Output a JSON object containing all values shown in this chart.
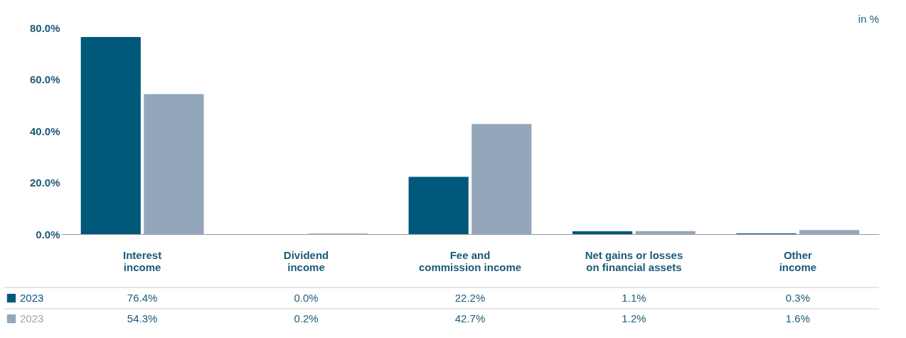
{
  "chart_data": {
    "type": "bar",
    "categories": [
      "Interest\nincome",
      "Dividend\nincome",
      "Fee and\ncommission income",
      "Net gains or losses\non financial assets",
      "Other\nincome"
    ],
    "series": [
      {
        "name": "2023",
        "color": "#00587a",
        "values": [
          76.4,
          0.0,
          22.2,
          1.1,
          0.3
        ],
        "value_labels": [
          "76.4%",
          "0.0%",
          "22.2%",
          "1.1%",
          "0.3%"
        ]
      },
      {
        "name": "2023",
        "color": "#94a6ba",
        "values": [
          54.3,
          0.2,
          42.7,
          1.2,
          1.6
        ],
        "value_labels": [
          "54.3%",
          "0.2%",
          "42.7%",
          "1.2%",
          "1.6%"
        ]
      }
    ],
    "ylim": [
      0,
      80
    ],
    "yticks": [
      {
        "value": 0,
        "label": "0.0%"
      },
      {
        "value": 20,
        "label": "20.0%"
      },
      {
        "value": 40,
        "label": "40.0%"
      },
      {
        "value": 60,
        "label": "60.0%"
      },
      {
        "value": 80,
        "label": "80.0%"
      }
    ],
    "annotations": [
      "in %"
    ],
    "legend": "bottom left",
    "grid": false
  }
}
